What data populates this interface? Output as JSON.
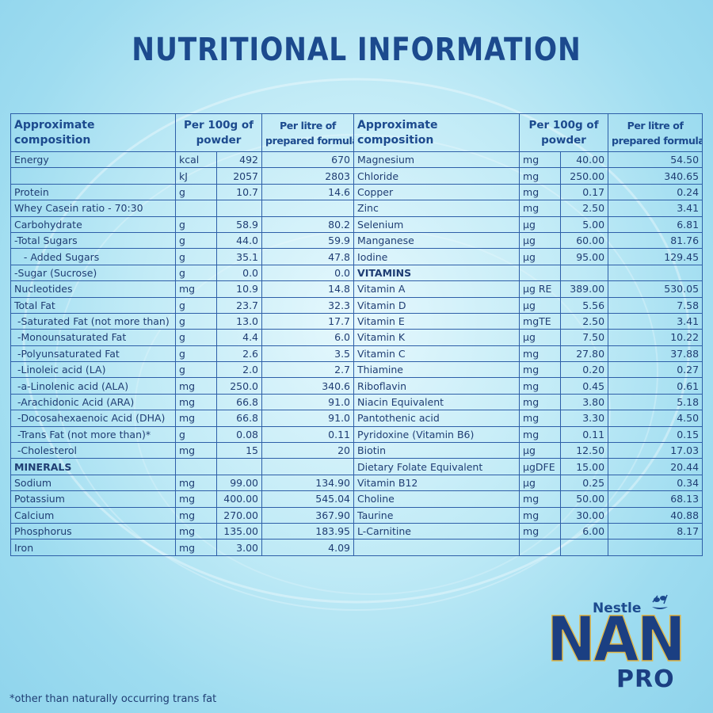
{
  "title": "NUTRITIONAL INFORMATION",
  "headers": {
    "composition": [
      "Approximate",
      "composition"
    ],
    "per100g": [
      "Per 100g of",
      "powder"
    ],
    "perlitre": [
      "Per litre of",
      "prepared formula"
    ]
  },
  "left_rows": [
    {
      "name": "Energy",
      "unit": "kcal",
      "per100g": "492",
      "perlitre": "670"
    },
    {
      "name": "",
      "unit": "kJ",
      "per100g": "2057",
      "perlitre": "2803"
    },
    {
      "name": "Protein",
      "unit": "g",
      "per100g": "10.7",
      "perlitre": "14.6"
    },
    {
      "name": "Whey Casein ratio - 70:30",
      "unit": "",
      "per100g": "",
      "perlitre": ""
    },
    {
      "name": "Carbohydrate",
      "unit": "g",
      "per100g": "58.9",
      "perlitre": "80.2"
    },
    {
      "name": "-Total Sugars",
      "unit": "g",
      "per100g": "44.0",
      "perlitre": "59.9"
    },
    {
      "name": "   - Added Sugars",
      "unit": "g",
      "per100g": "35.1",
      "perlitre": "47.8"
    },
    {
      "name": "-Sugar (Sucrose)",
      "unit": "g",
      "per100g": "0.0",
      "perlitre": "0.0"
    },
    {
      "name": "Nucleotides",
      "unit": "mg",
      "per100g": "10.9",
      "perlitre": "14.8"
    },
    {
      "name": "Total Fat",
      "unit": "g",
      "per100g": "23.7",
      "perlitre": "32.3"
    },
    {
      "name": " -Saturated Fat (not more than)",
      "unit": "g",
      "per100g": "13.0",
      "perlitre": "17.7"
    },
    {
      "name": " -Monounsaturated Fat",
      "unit": "g",
      "per100g": "4.4",
      "perlitre": "6.0"
    },
    {
      "name": " -Polyunsaturated Fat",
      "unit": "g",
      "per100g": "2.6",
      "perlitre": "3.5"
    },
    {
      "name": " -Linoleic acid (LA)",
      "unit": "g",
      "per100g": "2.0",
      "perlitre": "2.7"
    },
    {
      "name": " -a-Linolenic acid (ALA)",
      "unit": "mg",
      "per100g": "250.0",
      "perlitre": "340.6"
    },
    {
      "name": " -Arachidonic Acid (ARA)",
      "unit": "mg",
      "per100g": "66.8",
      "perlitre": "91.0"
    },
    {
      "name": " -Docosahexaenoic Acid (DHA)",
      "unit": "mg",
      "per100g": "66.8",
      "perlitre": "91.0"
    },
    {
      "name": " -Trans Fat (not more than)*",
      "unit": "g",
      "per100g": "0.08",
      "perlitre": "0.11"
    },
    {
      "name": " -Cholesterol",
      "unit": "mg",
      "per100g": "15",
      "perlitre": "20"
    },
    {
      "name": "MINERALS",
      "unit": "",
      "per100g": "",
      "perlitre": "",
      "bold": true
    },
    {
      "name": "Sodium",
      "unit": "mg",
      "per100g": "99.00",
      "perlitre": "134.90"
    },
    {
      "name": "Potassium",
      "unit": "mg",
      "per100g": "400.00",
      "perlitre": "545.04"
    },
    {
      "name": "Calcium",
      "unit": "mg",
      "per100g": "270.00",
      "perlitre": "367.90"
    },
    {
      "name": "Phosphorus",
      "unit": "mg",
      "per100g": "135.00",
      "perlitre": "183.95"
    },
    {
      "name": "Iron",
      "unit": "mg",
      "per100g": "3.00",
      "perlitre": "4.09"
    }
  ],
  "right_rows": [
    {
      "name": "Magnesium",
      "unit": "mg",
      "per100g": "40.00",
      "perlitre": "54.50"
    },
    {
      "name": "Chloride",
      "unit": "mg",
      "per100g": "250.00",
      "perlitre": "340.65"
    },
    {
      "name": "Copper",
      "unit": "mg",
      "per100g": "0.17",
      "perlitre": "0.24"
    },
    {
      "name": "Zinc",
      "unit": "mg",
      "per100g": "2.50",
      "perlitre": "3.41"
    },
    {
      "name": "Selenium",
      "unit": "µg",
      "per100g": "5.00",
      "perlitre": "6.81"
    },
    {
      "name": "Manganese",
      "unit": "µg",
      "per100g": "60.00",
      "perlitre": "81.76"
    },
    {
      "name": "Iodine",
      "unit": "µg",
      "per100g": "95.00",
      "perlitre": "129.45"
    },
    {
      "name": "VITAMINS",
      "unit": "",
      "per100g": "",
      "perlitre": "",
      "bold": true
    },
    {
      "name": "Vitamin A",
      "unit": "µg RE",
      "per100g": "389.00",
      "perlitre": "530.05"
    },
    {
      "name": "Vitamin D",
      "unit": "µg",
      "per100g": "5.56",
      "perlitre": "7.58"
    },
    {
      "name": "Vitamin E",
      "unit": "mgTE",
      "per100g": "2.50",
      "perlitre": "3.41"
    },
    {
      "name": "Vitamin K",
      "unit": "µg",
      "per100g": "7.50",
      "perlitre": "10.22"
    },
    {
      "name": "Vitamin C",
      "unit": "mg",
      "per100g": "27.80",
      "perlitre": "37.88"
    },
    {
      "name": "Thiamine",
      "unit": "mg",
      "per100g": "0.20",
      "perlitre": "0.27"
    },
    {
      "name": "Riboflavin",
      "unit": "mg",
      "per100g": "0.45",
      "perlitre": "0.61"
    },
    {
      "name": "Niacin Equivalent",
      "unit": "mg",
      "per100g": "3.80",
      "perlitre": "5.18"
    },
    {
      "name": "Pantothenic acid",
      "unit": "mg",
      "per100g": "3.30",
      "perlitre": "4.50"
    },
    {
      "name": "Pyridoxine (Vitamin B6)",
      "unit": "mg",
      "per100g": "0.11",
      "perlitre": "0.15"
    },
    {
      "name": "Biotin",
      "unit": "µg",
      "per100g": "12.50",
      "perlitre": "17.03"
    },
    {
      "name": "Dietary Folate Equivalent",
      "unit": "µgDFE",
      "per100g": "15.00",
      "perlitre": "20.44"
    },
    {
      "name": "Vitamin B12",
      "unit": "µg",
      "per100g": "0.25",
      "perlitre": "0.34"
    },
    {
      "name": "Choline",
      "unit": "mg",
      "per100g": "50.00",
      "perlitre": "68.13"
    },
    {
      "name": "Taurine",
      "unit": "mg",
      "per100g": "30.00",
      "perlitre": "40.88"
    },
    {
      "name": "L-Carnitine",
      "unit": "mg",
      "per100g": "6.00",
      "perlitre": "8.17"
    },
    {
      "name": "",
      "unit": "",
      "per100g": "",
      "perlitre": ""
    }
  ],
  "footnote": "*other than naturally occurring trans fat",
  "logo": {
    "brand": "Nestle",
    "product": "NAN",
    "product_line": "PRO",
    "registered": "®"
  },
  "colors": {
    "text": "#1f3d73",
    "title": "#1c4a8e",
    "border": "#2e5fa8",
    "logo_gold": "#e2b94a"
  }
}
